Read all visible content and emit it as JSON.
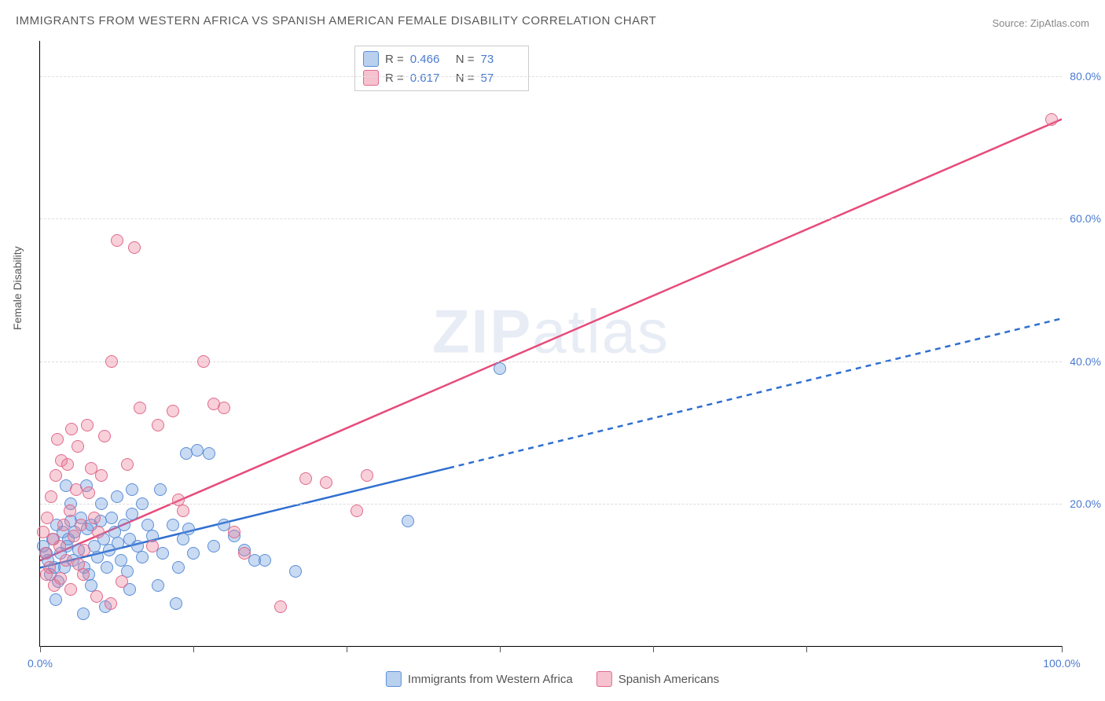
{
  "title": "IMMIGRANTS FROM WESTERN AFRICA VS SPANISH AMERICAN FEMALE DISABILITY CORRELATION CHART",
  "source_label": "Source: ",
  "source_name": "ZipAtlas.com",
  "ylabel": "Female Disability",
  "watermark": "ZIPatlas",
  "chart": {
    "type": "scatter",
    "xlim": [
      0,
      100
    ],
    "ylim": [
      0,
      85
    ],
    "x_ticks_pct": [
      0,
      15,
      30,
      45,
      60,
      75,
      100
    ],
    "x_tick_labels": {
      "0": "0.0%",
      "100": "100.0%"
    },
    "y_grid_pct": [
      20,
      40,
      60,
      80
    ],
    "y_tick_labels": [
      "20.0%",
      "40.0%",
      "60.0%",
      "80.0%"
    ],
    "background_color": "#ffffff",
    "grid_color": "#dddddd",
    "axis_color": "#000000",
    "tick_label_color": "#4a7bd0",
    "series": [
      {
        "name": "Immigrants from Western Africa",
        "color_fill": "rgba(100,150,220,0.35)",
        "color_stroke": "#5b8fd6",
        "line_color": "#2f6fd0",
        "R": "0.466",
        "N": "73",
        "trend": {
          "x1": 0,
          "y1": 11,
          "x2_solid": 40,
          "y2_solid": 25,
          "x2_dash": 100,
          "y2_dash": 46
        },
        "points": [
          [
            0.3,
            14
          ],
          [
            0.6,
            13
          ],
          [
            0.8,
            12
          ],
          [
            1,
            10
          ],
          [
            1.2,
            15
          ],
          [
            1.4,
            11
          ],
          [
            1.6,
            17
          ],
          [
            1.8,
            9
          ],
          [
            2,
            13
          ],
          [
            2.2,
            16
          ],
          [
            2.4,
            11
          ],
          [
            2.6,
            14
          ],
          [
            2.8,
            15
          ],
          [
            3,
            17.5
          ],
          [
            3.2,
            12
          ],
          [
            3.4,
            16
          ],
          [
            3.8,
            13.5
          ],
          [
            4,
            18
          ],
          [
            4.3,
            11
          ],
          [
            4.6,
            16.5
          ],
          [
            4.8,
            10
          ],
          [
            5,
            17
          ],
          [
            5.3,
            14
          ],
          [
            5.6,
            12.5
          ],
          [
            5.9,
            17.5
          ],
          [
            6.2,
            15
          ],
          [
            6.5,
            11
          ],
          [
            6.8,
            13.5
          ],
          [
            7,
            18
          ],
          [
            7.3,
            16
          ],
          [
            7.6,
            14.5
          ],
          [
            7.9,
            12
          ],
          [
            8.2,
            17
          ],
          [
            8.5,
            10.5
          ],
          [
            8.8,
            15
          ],
          [
            9,
            18.5
          ],
          [
            9.5,
            14
          ],
          [
            10,
            12.5
          ],
          [
            10.5,
            17
          ],
          [
            11,
            15.5
          ],
          [
            4.2,
            4.5
          ],
          [
            6.4,
            5.5
          ],
          [
            8.8,
            8
          ],
          [
            11.5,
            8.5
          ],
          [
            12,
            13
          ],
          [
            13,
            17
          ],
          [
            13.5,
            11
          ],
          [
            14,
            15
          ],
          [
            14.5,
            16.5
          ],
          [
            15,
            13
          ],
          [
            14.3,
            27
          ],
          [
            15.4,
            27.5
          ],
          [
            16.5,
            27
          ],
          [
            11.8,
            22
          ],
          [
            9,
            22
          ],
          [
            6,
            20
          ],
          [
            3,
            20
          ],
          [
            2.5,
            22.5
          ],
          [
            17,
            14
          ],
          [
            18,
            17
          ],
          [
            19,
            15.5
          ],
          [
            20,
            13.5
          ],
          [
            21,
            12
          ],
          [
            22,
            12
          ],
          [
            25,
            10.5
          ],
          [
            36,
            17.5
          ],
          [
            45,
            39
          ],
          [
            13.3,
            6
          ],
          [
            5,
            8.5
          ],
          [
            1.5,
            6.5
          ],
          [
            7.5,
            21
          ],
          [
            4.5,
            22.5
          ],
          [
            10,
            20
          ]
        ]
      },
      {
        "name": "Spanish Americans",
        "color_fill": "rgba(235,120,150,0.35)",
        "color_stroke": "#e06a8c",
        "line_color": "#e74b7a",
        "R": "0.617",
        "N": "57",
        "trend": {
          "x1": 0,
          "y1": 12,
          "x2_solid": 100,
          "y2_solid": 74
        },
        "points": [
          [
            0.3,
            16
          ],
          [
            0.5,
            13
          ],
          [
            0.7,
            18
          ],
          [
            0.9,
            11
          ],
          [
            1.1,
            21
          ],
          [
            1.3,
            15
          ],
          [
            1.5,
            24
          ],
          [
            1.7,
            29
          ],
          [
            1.9,
            14
          ],
          [
            2.1,
            26
          ],
          [
            2.3,
            17
          ],
          [
            2.5,
            12
          ],
          [
            2.7,
            25.5
          ],
          [
            2.9,
            19
          ],
          [
            3.1,
            30.5
          ],
          [
            3.3,
            15.5
          ],
          [
            3.5,
            22
          ],
          [
            3.7,
            28
          ],
          [
            4,
            17
          ],
          [
            4.3,
            13.5
          ],
          [
            4.6,
            31
          ],
          [
            5,
            25
          ],
          [
            5.3,
            18
          ],
          [
            5.7,
            16
          ],
          [
            6,
            24
          ],
          [
            7,
            40
          ],
          [
            7.5,
            57
          ],
          [
            9.2,
            56
          ],
          [
            9.8,
            33.5
          ],
          [
            11.5,
            31
          ],
          [
            13,
            33
          ],
          [
            13.5,
            20.5
          ],
          [
            14,
            19
          ],
          [
            16,
            40
          ],
          [
            17,
            34
          ],
          [
            18,
            33.5
          ],
          [
            19,
            16
          ],
          [
            20,
            13
          ],
          [
            23.5,
            5.5
          ],
          [
            26,
            23.5
          ],
          [
            28,
            23
          ],
          [
            31,
            19
          ],
          [
            32,
            24
          ],
          [
            5.5,
            7
          ],
          [
            6.9,
            6
          ],
          [
            8,
            9
          ],
          [
            2,
            9.5
          ],
          [
            3,
            8
          ],
          [
            4.2,
            10
          ],
          [
            0.6,
            10
          ],
          [
            1.4,
            8.5
          ],
          [
            3.8,
            11.5
          ],
          [
            4.8,
            21.5
          ],
          [
            6.3,
            29.5
          ],
          [
            8.5,
            25.5
          ],
          [
            11,
            14
          ],
          [
            99,
            74
          ]
        ]
      }
    ]
  },
  "stats_legend_labels": {
    "R": "R =",
    "N": "N ="
  },
  "bottom_legend": [
    "Immigrants from Western Africa",
    "Spanish Americans"
  ]
}
